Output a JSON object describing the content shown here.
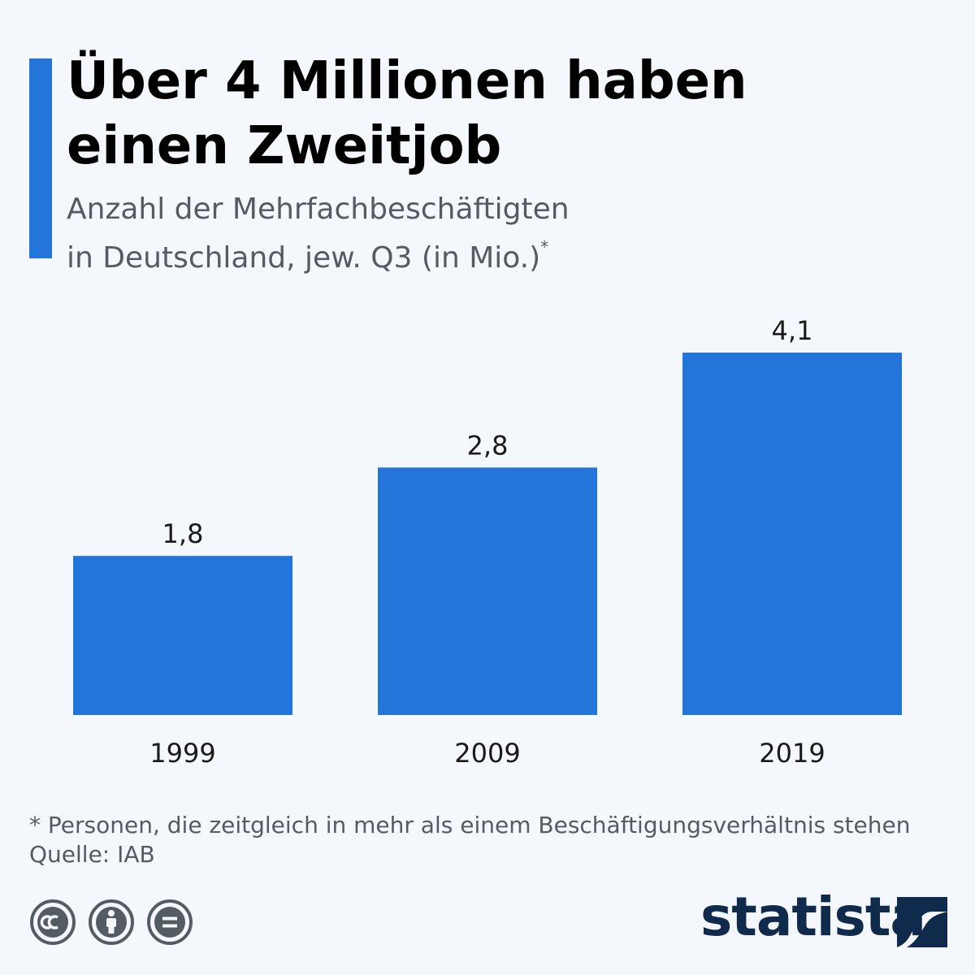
{
  "colors": {
    "accent": "#2475d9",
    "bar": "#2475d9",
    "text": "#1a1a1a",
    "muted": "#555b62",
    "brand": "#0f2a4a"
  },
  "title": {
    "line1": "Über 4 Millionen haben",
    "line2": "einen Zweitjob"
  },
  "subtitle": {
    "line1": "Anzahl der Mehrfachbeschäftigten",
    "line2": "in Deutschland, jew. Q3 (in Mio.)",
    "asterisk": "*"
  },
  "chart_data": {
    "type": "bar",
    "categories": [
      "1999",
      "2009",
      "2019"
    ],
    "values": [
      1.8,
      2.8,
      4.1
    ],
    "value_labels": [
      "1,8",
      "2,8",
      "4,1"
    ],
    "title": "Über 4 Millionen haben einen Zweitjob",
    "subtitle": "Anzahl der Mehrfachbeschäftigten in Deutschland, jew. Q3 (in Mio.)*",
    "xlabel": "",
    "ylabel": "",
    "ylim": [
      0,
      4.1
    ],
    "grid": false,
    "legend": "none"
  },
  "footnote": {
    "note": "* Personen, die zeitgleich in mehr als einem Beschäftigungsverhältnis stehen",
    "source": "Quelle: IAB"
  },
  "license_icons": [
    "creative-commons-icon",
    "attribution-icon",
    "no-derivatives-icon"
  ],
  "brand": {
    "name": "statista",
    "icon": "statista-logo-icon"
  }
}
